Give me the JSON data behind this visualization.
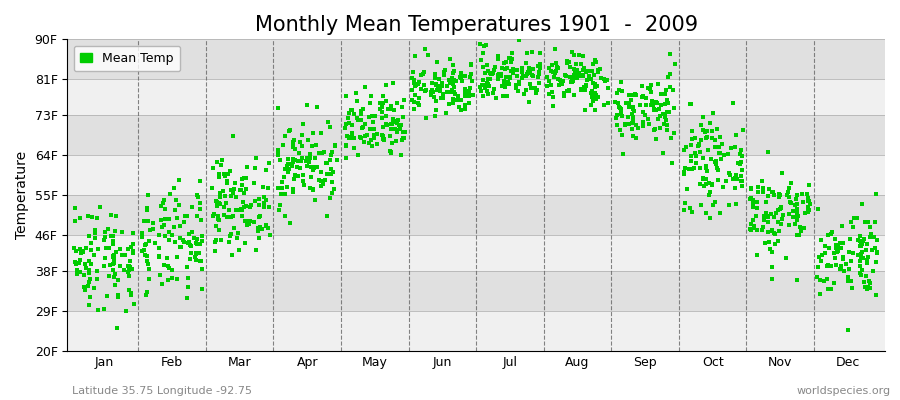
{
  "title": "Monthly Mean Temperatures 1901  -  2009",
  "ylabel": "Temperature",
  "yticks": [
    20,
    29,
    38,
    46,
    55,
    64,
    73,
    81,
    90
  ],
  "ytick_labels": [
    "20F",
    "29F",
    "38F",
    "46F",
    "55F",
    "64F",
    "73F",
    "81F",
    "90F"
  ],
  "ylim": [
    20,
    90
  ],
  "months": [
    "Jan",
    "Feb",
    "Mar",
    "Apr",
    "May",
    "Jun",
    "Jul",
    "Aug",
    "Sep",
    "Oct",
    "Nov",
    "Dec"
  ],
  "dot_color": "#00cc00",
  "dot_size": 5,
  "legend_label": "Mean Temp",
  "bg_color": "#ffffff",
  "band_colors": [
    "#f0f0f0",
    "#e0e0e0"
  ],
  "title_fontsize": 15,
  "axis_fontsize": 10,
  "tick_fontsize": 9,
  "bottom_left_text": "Latitude 35.75 Longitude -92.75",
  "bottom_right_text": "worldspecies.org",
  "monthly_means": [
    41,
    44,
    53,
    62,
    70,
    79,
    82,
    81,
    74,
    62,
    51,
    42
  ],
  "monthly_stds": [
    6,
    6,
    5,
    5,
    4,
    3,
    3,
    3,
    4,
    5,
    5,
    5
  ],
  "years": 109,
  "seed": 42
}
